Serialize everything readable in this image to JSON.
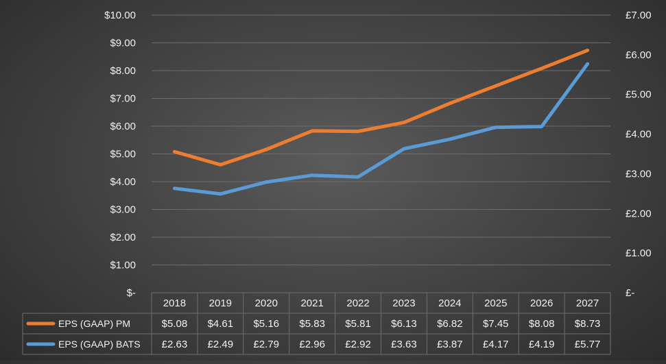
{
  "chart_data": {
    "type": "line",
    "categories": [
      "2018",
      "2019",
      "2020",
      "2021",
      "2022",
      "2023",
      "2024",
      "2025",
      "2026",
      "2027"
    ],
    "y_left": {
      "ticks": [
        "$-",
        "$1.00",
        "$2.00",
        "$3.00",
        "$4.00",
        "$5.00",
        "$6.00",
        "$7.00",
        "$8.00",
        "$9.00",
        "$10.00"
      ],
      "range": [
        0,
        10
      ]
    },
    "y_right": {
      "ticks": [
        "£-",
        "£1.00",
        "£2.00",
        "£3.00",
        "£4.00",
        "£5.00",
        "£6.00",
        "£7.00"
      ],
      "range": [
        0,
        7
      ]
    },
    "grid": true,
    "legend": "data-table-bottom",
    "series": [
      {
        "name": "EPS (GAAP) PM",
        "axis": "left",
        "color": "#ed7d31",
        "values": [
          5.08,
          4.61,
          5.16,
          5.83,
          5.81,
          6.13,
          6.82,
          7.45,
          8.08,
          8.73
        ],
        "labels": [
          "$5.08",
          "$4.61",
          "$5.16",
          "$5.83",
          "$5.81",
          "$6.13",
          "$6.82",
          "$7.45",
          "$8.08",
          "$8.73"
        ]
      },
      {
        "name": "EPS (GAAP) BATS",
        "axis": "right",
        "color": "#5b9bd5",
        "values": [
          2.63,
          2.49,
          2.79,
          2.96,
          2.92,
          3.63,
          3.87,
          4.17,
          4.19,
          5.77
        ],
        "labels": [
          "£2.63",
          "£2.49",
          "£2.79",
          "£2.96",
          "£2.92",
          "£3.63",
          "£3.87",
          "£4.17",
          "£4.19",
          "£5.77"
        ]
      }
    ]
  }
}
